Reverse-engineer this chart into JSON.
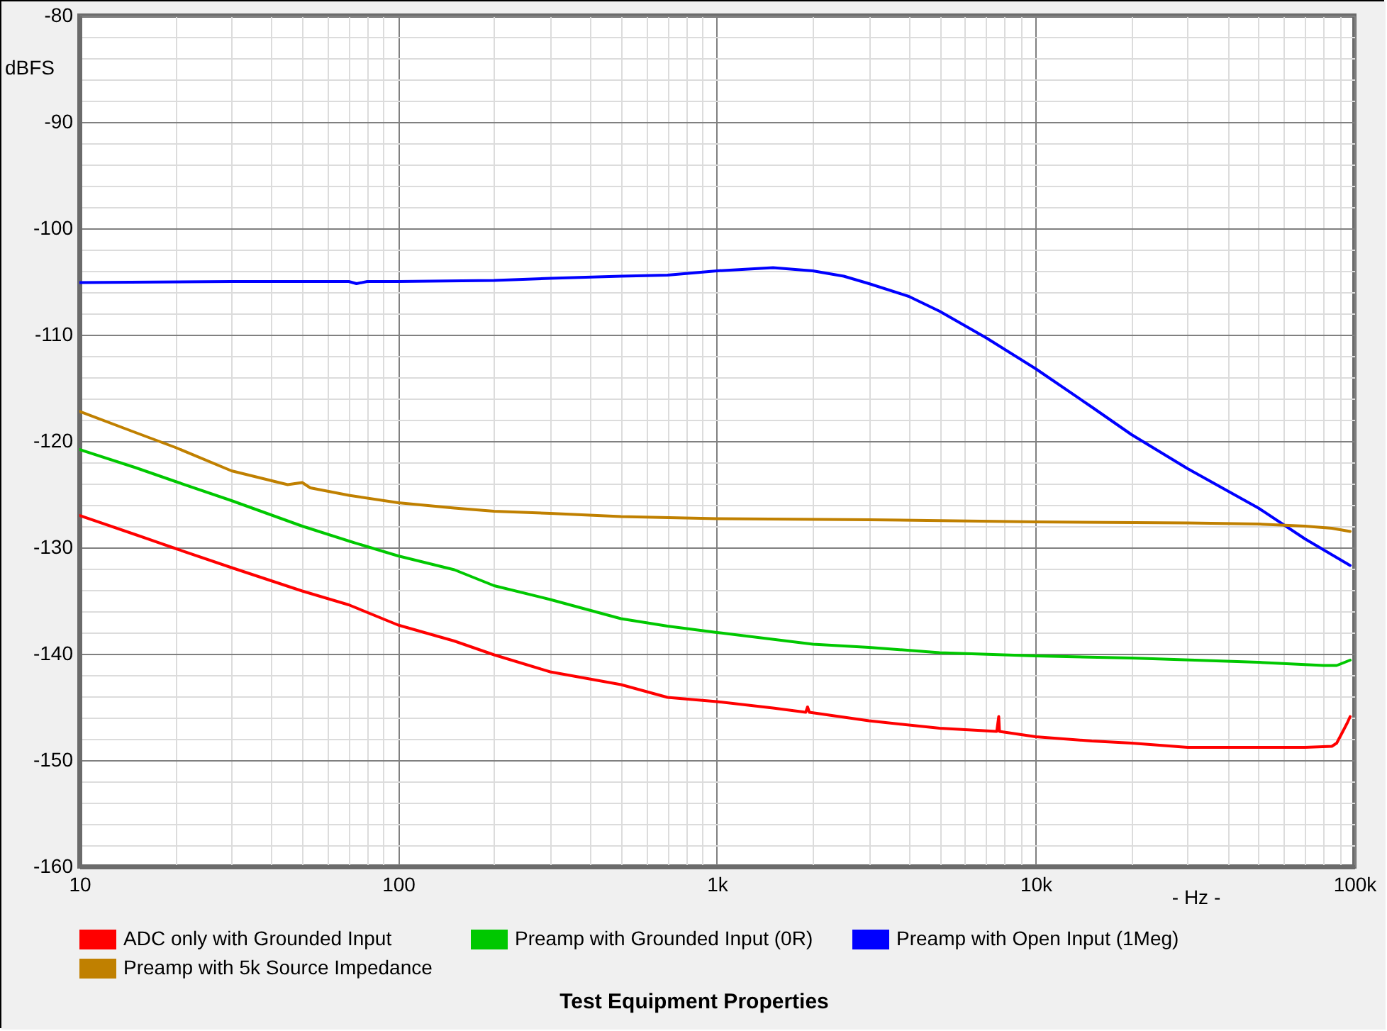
{
  "chart_data": {
    "type": "line",
    "title": "Test Equipment Properties",
    "xlabel": "- Hz -",
    "ylabel": "dBFS",
    "log": "x",
    "grid": true,
    "legend": "bottom",
    "xlim": [
      10,
      100000
    ],
    "ylim": [
      -160,
      -80
    ],
    "xticks": [
      10,
      {
        "value": 20,
        "label": null
      },
      {
        "value": 30,
        "label": null
      },
      {
        "value": 40,
        "label": null
      },
      {
        "value": 50,
        "label": null
      },
      {
        "value": 60,
        "label": null
      },
      {
        "value": 70,
        "label": null
      },
      {
        "value": 80,
        "label": null
      },
      {
        "value": 90,
        "label": null
      },
      100,
      {
        "value": 200,
        "label": null
      },
      {
        "value": 300,
        "label": null
      },
      {
        "value": 400,
        "label": null
      },
      {
        "value": 500,
        "label": null
      },
      {
        "value": 600,
        "label": null
      },
      {
        "value": 700,
        "label": null
      },
      {
        "value": 800,
        "label": null
      },
      {
        "value": 900,
        "label": null
      },
      {
        "value": 1000,
        "label": "1k"
      },
      {
        "value": 2000,
        "label": null
      },
      {
        "value": 3000,
        "label": null
      },
      {
        "value": 4000,
        "label": null
      },
      {
        "value": 5000,
        "label": null
      },
      {
        "value": 6000,
        "label": null
      },
      {
        "value": 7000,
        "label": null
      },
      {
        "value": 8000,
        "label": null
      },
      {
        "value": 9000,
        "label": null
      },
      {
        "value": 10000,
        "label": "10k"
      },
      {
        "value": 20000,
        "label": null
      },
      {
        "value": 30000,
        "label": null
      },
      {
        "value": 40000,
        "label": null
      },
      {
        "value": 50000,
        "label": null
      },
      {
        "value": 60000,
        "label": null
      },
      {
        "value": 70000,
        "label": null
      },
      {
        "value": 80000,
        "label": null
      },
      {
        "value": 90000,
        "label": null
      },
      {
        "value": 100000,
        "label": "100k"
      }
    ],
    "yticks": [
      -80,
      {
        "value": -82,
        "label": null
      },
      {
        "value": -84,
        "label": null
      },
      {
        "value": -86,
        "label": null
      },
      {
        "value": -88,
        "label": null
      },
      -90,
      {
        "value": -92,
        "label": null
      },
      {
        "value": -94,
        "label": null
      },
      {
        "value": -96,
        "label": null
      },
      {
        "value": -98,
        "label": null
      },
      -100,
      {
        "value": -102,
        "label": null
      },
      {
        "value": -104,
        "label": null
      },
      {
        "value": -106,
        "label": null
      },
      {
        "value": -108,
        "label": null
      },
      -110,
      {
        "value": -112,
        "label": null
      },
      {
        "value": -114,
        "label": null
      },
      {
        "value": -116,
        "label": null
      },
      {
        "value": -118,
        "label": null
      },
      -120,
      {
        "value": -122,
        "label": null
      },
      {
        "value": -124,
        "label": null
      },
      {
        "value": -126,
        "label": null
      },
      {
        "value": -128,
        "label": null
      },
      -130,
      {
        "value": -132,
        "label": null
      },
      {
        "value": -134,
        "label": null
      },
      {
        "value": -136,
        "label": null
      },
      {
        "value": -138,
        "label": null
      },
      -140,
      {
        "value": -142,
        "label": null
      },
      {
        "value": -144,
        "label": null
      },
      {
        "value": -146,
        "label": null
      },
      {
        "value": -148,
        "label": null
      },
      -150,
      {
        "value": -152,
        "label": null
      },
      {
        "value": -154,
        "label": null
      },
      {
        "value": -156,
        "label": null
      },
      {
        "value": -158,
        "label": null
      },
      -160
    ],
    "series": [
      {
        "name": "ADC only with Grounded Input",
        "color": "#ff0000",
        "x": [
          10,
          15,
          20,
          30,
          50,
          70,
          100,
          150,
          200,
          300,
          500,
          700,
          1000,
          1500,
          1900,
          1925,
          1950,
          3000,
          5000,
          7550,
          7660,
          7700,
          10000,
          15000,
          20000,
          30000,
          50000,
          70000,
          85000,
          88000,
          92000,
          95000,
          97000
        ],
        "values": [
          -127.0,
          -128.8,
          -130.1,
          -131.9,
          -134.1,
          -135.4,
          -137.3,
          -138.8,
          -140.1,
          -141.7,
          -142.9,
          -144.1,
          -144.5,
          -145.1,
          -145.5,
          -145.0,
          -145.5,
          -146.3,
          -147.0,
          -147.3,
          -145.9,
          -147.3,
          -147.8,
          -148.2,
          -148.4,
          -148.8,
          -148.8,
          -148.8,
          -148.7,
          -148.4,
          -147.3,
          -146.5,
          -145.9
        ]
      },
      {
        "name": "Preamp with Grounded Input (0R)",
        "color": "#00c800",
        "x": [
          10,
          15,
          20,
          30,
          50,
          70,
          100,
          150,
          200,
          300,
          500,
          700,
          1000,
          2000,
          3000,
          5000,
          10000,
          20000,
          50000,
          80000,
          88000,
          97000
        ],
        "values": [
          -120.8,
          -122.5,
          -123.8,
          -125.6,
          -128.0,
          -129.4,
          -130.8,
          -132.1,
          -133.6,
          -134.9,
          -136.7,
          -137.4,
          -138.0,
          -139.1,
          -139.4,
          -139.9,
          -140.2,
          -140.4,
          -140.8,
          -141.1,
          -141.1,
          -140.6
        ]
      },
      {
        "name": "Preamp with Open Input (1Meg)",
        "color": "#0000ff",
        "x": [
          10,
          30,
          50,
          70,
          74,
          80,
          100,
          200,
          300,
          500,
          700,
          1000,
          1500,
          2000,
          2500,
          3000,
          4000,
          5000,
          7000,
          10000,
          15000,
          20000,
          30000,
          50000,
          70000,
          97000
        ],
        "values": [
          -105.1,
          -105.0,
          -105.0,
          -105.0,
          -105.2,
          -105.0,
          -105.0,
          -104.9,
          -104.7,
          -104.5,
          -104.4,
          -104.0,
          -103.7,
          -104.0,
          -104.5,
          -105.2,
          -106.4,
          -107.8,
          -110.3,
          -113.2,
          -116.8,
          -119.4,
          -122.6,
          -126.3,
          -129.2,
          -131.7
        ]
      },
      {
        "name": "Preamp with 5k Source Impedance",
        "color": "#c08000",
        "x": [
          10,
          15,
          20,
          30,
          45,
          50,
          53,
          70,
          100,
          150,
          200,
          300,
          500,
          1000,
          3000,
          10000,
          30000,
          50000,
          70000,
          85000,
          97000
        ],
        "values": [
          -117.2,
          -119.2,
          -120.6,
          -122.8,
          -124.1,
          -123.9,
          -124.4,
          -125.1,
          -125.8,
          -126.3,
          -126.6,
          -126.8,
          -127.1,
          -127.3,
          -127.4,
          -127.6,
          -127.7,
          -127.8,
          -128.0,
          -128.2,
          -128.5
        ]
      }
    ]
  }
}
